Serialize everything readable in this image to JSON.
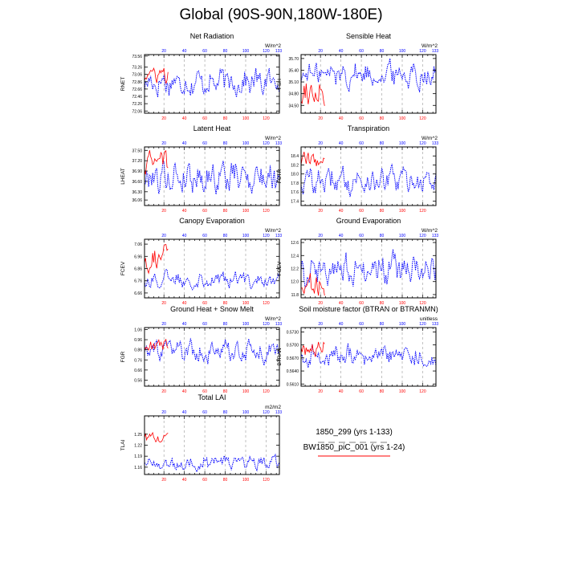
{
  "title": "Global (90S-90N,180W-180E)",
  "colors": {
    "series_a": "#0000ff",
    "series_b": "#ff0000",
    "grid": "#999999"
  },
  "legend": {
    "entries": [
      {
        "name": "1850_299 (yrs 1-133)",
        "color": "#999999",
        "style": "dash"
      },
      {
        "name": "BW1850_piC_001 (yrs 1-24)",
        "color": "#ff0000",
        "style": "solid"
      }
    ]
  },
  "chart_data": [
    {
      "type": "line",
      "title": "Net Radiation",
      "ylabel": "RNET",
      "units": "W/m^2",
      "xlim": [
        1,
        133
      ],
      "ylim": [
        72.0,
        73.6
      ],
      "yticks": [
        "72.06",
        "72.26",
        "72.46",
        "72.66",
        "72.86",
        "73.06",
        "73.26",
        "73.56"
      ],
      "top_ticks": [
        "20",
        "40",
        "60",
        "80",
        "100",
        "120"
      ],
      "top_end": "133",
      "bottom_ticks": [
        "20",
        "40",
        "60",
        "80",
        "100",
        "120"
      ],
      "series": [
        {
          "name": "1850_299 (yrs 1-133)",
          "years": 133,
          "mean": 72.85,
          "amp": 0.28
        },
        {
          "name": "BW1850_piC_001 (yrs 1-24)",
          "years": 24,
          "mean": 73.05,
          "amp": 0.18
        }
      ]
    },
    {
      "type": "line",
      "title": "Sensible Heat",
      "ylabel": "FSH",
      "units": "W/m^2",
      "xlim": [
        1,
        133
      ],
      "ylim": [
        34.3,
        35.8
      ],
      "yticks": [
        "34.50",
        "34.80",
        "35.10",
        "35.40",
        "35.70"
      ],
      "top_ticks": [
        "20",
        "40",
        "60",
        "80",
        "100",
        "120"
      ],
      "top_end": "133",
      "bottom_ticks": [
        "20",
        "40",
        "60",
        "80",
        "100",
        "120"
      ],
      "series": [
        {
          "name": "1850_299 (yrs 1-133)",
          "years": 133,
          "mean": 35.3,
          "amp": 0.25
        },
        {
          "name": "BW1850_piC_001 (yrs 1-24)",
          "years": 24,
          "mean": 34.9,
          "amp": 0.35
        }
      ]
    },
    {
      "type": "line",
      "title": "Latent Heat",
      "ylabel": "LHEAT",
      "units": "W/m^2",
      "xlim": [
        1,
        133
      ],
      "ylim": [
        35.9,
        37.6
      ],
      "yticks": [
        "36.06",
        "36.30",
        "36.60",
        "36.90",
        "37.20",
        "37.50"
      ],
      "top_ticks": [
        "20",
        "40",
        "60",
        "80",
        "100",
        "120"
      ],
      "top_end": "133",
      "bottom_ticks": [
        "20",
        "40",
        "60",
        "80",
        "100",
        "120"
      ],
      "series": [
        {
          "name": "1850_299 (yrs 1-133)",
          "years": 133,
          "mean": 36.75,
          "amp": 0.35
        },
        {
          "name": "BW1850_piC_001 (yrs 1-24)",
          "years": 24,
          "mean": 37.15,
          "amp": 0.25
        }
      ]
    },
    {
      "type": "line",
      "title": "Transpiration",
      "ylabel": "FCTR",
      "units": "W/m^2",
      "xlim": [
        1,
        133
      ],
      "ylim": [
        17.3,
        18.6
      ],
      "yticks": [
        "17.4",
        "17.6",
        "17.8",
        "18.0",
        "18.2",
        "18.4"
      ],
      "top_ticks": [
        "20",
        "40",
        "60",
        "80",
        "100",
        "120"
      ],
      "top_end": "133",
      "bottom_ticks": [
        "20",
        "40",
        "60",
        "80",
        "100",
        "120"
      ],
      "series": [
        {
          "name": "1850_299 (yrs 1-133)",
          "years": 133,
          "mean": 17.85,
          "amp": 0.22
        },
        {
          "name": "BW1850_piC_001 (yrs 1-24)",
          "years": 24,
          "mean": 18.3,
          "amp": 0.15
        }
      ]
    },
    {
      "type": "line",
      "title": "Canopy Evaporation",
      "ylabel": "FCEV",
      "units": "W/m^2",
      "xlim": [
        1,
        133
      ],
      "ylim": [
        6.62,
        7.1
      ],
      "yticks": [
        "6.66",
        "6.76",
        "6.86",
        "6.96",
        "7.06"
      ],
      "top_ticks": [
        "20",
        "40",
        "60",
        "80",
        "100",
        "120"
      ],
      "top_end": "133",
      "bottom_ticks": [
        "20",
        "40",
        "60",
        "80",
        "100",
        "120"
      ],
      "series": [
        {
          "name": "1850_299 (yrs 1-133)",
          "years": 133,
          "mean": 6.77,
          "amp": 0.05
        },
        {
          "name": "BW1850_piC_001 (yrs 1-24)",
          "years": 24,
          "mean": 6.95,
          "amp": 0.08
        }
      ]
    },
    {
      "type": "line",
      "title": "Ground Evaporation",
      "ylabel": "FGEV",
      "units": "W/m^2",
      "xlim": [
        1,
        133
      ],
      "ylim": [
        11.75,
        12.65
      ],
      "yticks": [
        "11.8",
        "12.0",
        "12.2",
        "12.4",
        "12.6"
      ],
      "top_ticks": [
        "20",
        "40",
        "60",
        "80",
        "100",
        "120"
      ],
      "top_end": "133",
      "bottom_ticks": [
        "20",
        "40",
        "60",
        "80",
        "100",
        "120"
      ],
      "series": [
        {
          "name": "1850_299 (yrs 1-133)",
          "years": 133,
          "mean": 12.2,
          "amp": 0.18
        },
        {
          "name": "BW1850_piC_001 (yrs 1-24)",
          "years": 24,
          "mean": 11.95,
          "amp": 0.15
        }
      ]
    },
    {
      "type": "line",
      "title": "Ground Heat + Snow Melt",
      "ylabel": "FGR",
      "units": "W/m^2",
      "xlim": [
        1,
        133
      ],
      "ylim": [
        0.5,
        1.08
      ],
      "yticks": [
        "0.56",
        "0.66",
        "0.76",
        "0.86",
        "0.96",
        "1.06"
      ],
      "top_ticks": [
        "20",
        "40",
        "60",
        "80",
        "100",
        "120"
      ],
      "top_end": "133",
      "bottom_ticks": [
        "20",
        "40",
        "60",
        "80",
        "100",
        "120"
      ],
      "series": [
        {
          "name": "1850_299 (yrs 1-133)",
          "years": 133,
          "mean": 0.84,
          "amp": 0.08
        },
        {
          "name": "BW1850_piC_001 (yrs 1-24)",
          "years": 24,
          "mean": 0.9,
          "amp": 0.06
        }
      ]
    },
    {
      "type": "line",
      "title": "Soil moisture factor (BTRAN or BTRANMN)",
      "ylabel": "BTRAN",
      "units": "unitless",
      "xlim": [
        1,
        133
      ],
      "ylim": [
        0.5605,
        0.574
      ],
      "yticks": [
        "0.5610",
        "0.5640",
        "0.5670",
        "0.5700",
        "0.5730"
      ],
      "top_ticks": [
        "20",
        "40",
        "60",
        "80",
        "100",
        "120"
      ],
      "top_end": "133",
      "bottom_ticks": [
        "20",
        "40",
        "60",
        "80",
        "100",
        "120"
      ],
      "series": [
        {
          "name": "1850_299 (yrs 1-133)",
          "years": 133,
          "mean": 0.5675,
          "amp": 0.0018
        },
        {
          "name": "BW1850_piC_001 (yrs 1-24)",
          "years": 24,
          "mean": 0.5695,
          "amp": 0.0015
        }
      ]
    },
    {
      "type": "line",
      "title": "Total LAI",
      "ylabel": "TLAI",
      "units": "m2/m2",
      "xlim": [
        1,
        133
      ],
      "ylim": [
        1.14,
        1.3
      ],
      "yticks": [
        "1.16",
        "1.19",
        "1.22",
        "1.25"
      ],
      "top_ticks": [
        "20",
        "40",
        "60",
        "80",
        "100",
        "120"
      ],
      "top_end": "133",
      "bottom_ticks": [
        "20",
        "40",
        "60",
        "80",
        "100",
        "120"
      ],
      "series": [
        {
          "name": "1850_299 (yrs 1-133)",
          "years": 133,
          "mean": 1.172,
          "amp": 0.014
        },
        {
          "name": "BW1850_piC_001 (yrs 1-24)",
          "years": 24,
          "mean": 1.24,
          "amp": 0.012
        }
      ]
    }
  ]
}
